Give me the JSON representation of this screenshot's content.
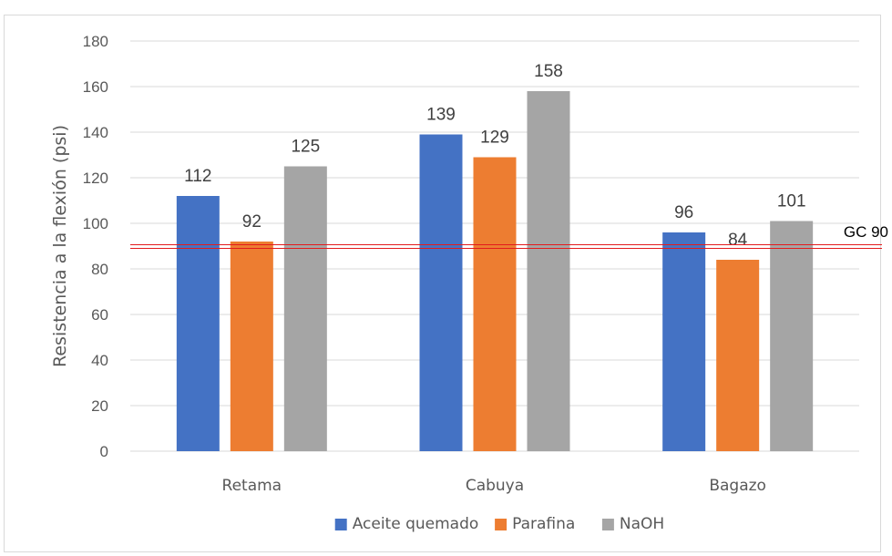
{
  "chart_data": {
    "type": "bar",
    "title": "",
    "xlabel": "",
    "ylabel": "Resistencia a la flexión (psi)",
    "ylim": [
      0,
      180
    ],
    "yticks": [
      0,
      20,
      40,
      60,
      80,
      100,
      120,
      140,
      160,
      180
    ],
    "grid": true,
    "legend_position": "bottom",
    "categories": [
      "Retama",
      "Cabuya",
      "Bagazo"
    ],
    "series": [
      {
        "name": "Aceite quemado",
        "color": "#4472c4",
        "values": [
          112,
          139,
          96
        ]
      },
      {
        "name": "Parafina",
        "color": "#ed7d31",
        "values": [
          92,
          129,
          84
        ]
      },
      {
        "name": "NaOH",
        "color": "#a5a5a5",
        "values": [
          125,
          158,
          101
        ]
      }
    ],
    "reference_line": {
      "label": "GC 90",
      "value": 90,
      "color": "#e31a1c"
    }
  }
}
